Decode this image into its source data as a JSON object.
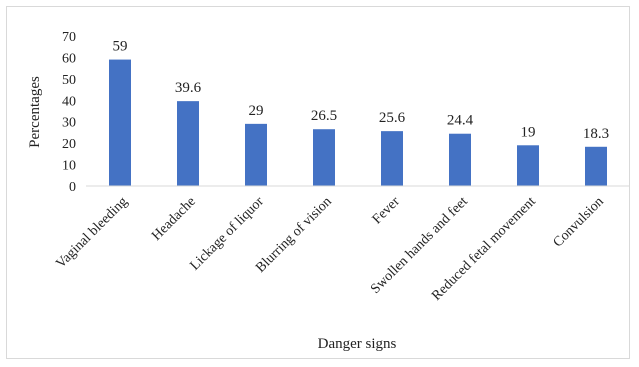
{
  "chart_data": {
    "type": "bar",
    "title": "",
    "xlabel": "Danger signs",
    "ylabel": "Percentages",
    "ylim": [
      0,
      70
    ],
    "yticks": [
      0,
      10,
      20,
      30,
      40,
      50,
      60,
      70
    ],
    "grid": false,
    "legend": "none",
    "bar_color": "#4472c4",
    "categories": [
      "Vaginal bleeding",
      "Headache",
      "Lickage of liquor",
      "Blurring of vision",
      "Fever",
      "Swollen hands and feet",
      "Reduced fetal movement",
      "Convulsion"
    ],
    "values": [
      59,
      39.6,
      29,
      26.5,
      25.6,
      24.4,
      19,
      18.3
    ],
    "value_labels": [
      "59",
      "39.6",
      "29",
      "26.5",
      "25.6",
      "24.4",
      "19",
      "18.3"
    ]
  }
}
